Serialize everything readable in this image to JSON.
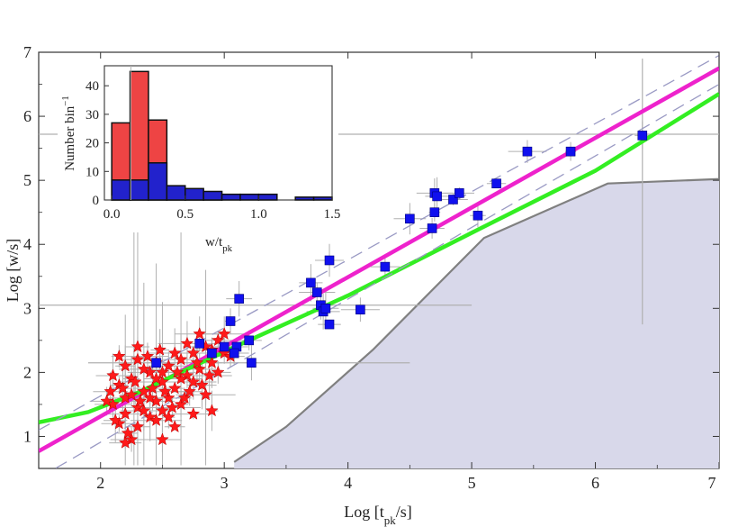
{
  "chart_data": [
    {
      "type": "scatter",
      "title": "",
      "xlabel": "Log [t_pk/s]",
      "ylabel": "Log [w/s]",
      "xlim": [
        1.5,
        7
      ],
      "ylim": [
        0.5,
        7
      ],
      "xticks": [
        "2",
        "3",
        "4",
        "5",
        "6",
        "7"
      ],
      "yticks": [
        "1",
        "2",
        "3",
        "4",
        "5",
        "6",
        "7"
      ],
      "colors": {
        "red_star": "#ff1a1a",
        "blue_square": "#1010ee",
        "magenta_fit": "#ee22cc",
        "green_fit": "#33ee22",
        "dashed": "#9a9ac4",
        "errorbar": "#b0b0b0",
        "shaded_region": "#d8d8ea",
        "boundary": "#808080"
      },
      "series": [
        {
          "name": "red stars",
          "marker": "star",
          "points": [
            [
              2.1,
              1.5
            ],
            [
              2.15,
              1.8
            ],
            [
              2.2,
              1.6
            ],
            [
              2.25,
              1.9
            ],
            [
              2.3,
              1.45
            ],
            [
              2.35,
              1.7
            ],
            [
              2.4,
              2.0
            ],
            [
              2.45,
              1.55
            ],
            [
              2.5,
              1.85
            ],
            [
              2.55,
              2.1
            ],
            [
              2.6,
              1.75
            ],
            [
              2.65,
              2.2
            ],
            [
              2.7,
              1.95
            ],
            [
              2.75,
              2.3
            ],
            [
              2.8,
              2.05
            ],
            [
              2.85,
              2.4
            ],
            [
              2.9,
              2.15
            ],
            [
              2.95,
              2.5
            ],
            [
              3.0,
              2.3
            ],
            [
              2.2,
              2.1
            ],
            [
              2.3,
              2.2
            ],
            [
              2.4,
              1.3
            ],
            [
              2.5,
              1.4
            ],
            [
              2.15,
              1.2
            ],
            [
              2.25,
              0.95
            ],
            [
              2.35,
              2.05
            ],
            [
              2.45,
              2.15
            ],
            [
              2.55,
              1.6
            ],
            [
              2.65,
              1.5
            ],
            [
              2.75,
              1.85
            ],
            [
              2.85,
              1.65
            ],
            [
              2.05,
              1.55
            ],
            [
              2.1,
              1.95
            ],
            [
              2.2,
              1.35
            ],
            [
              2.3,
              1.15
            ],
            [
              2.4,
              1.6
            ],
            [
              2.5,
              2.0
            ],
            [
              2.6,
              2.3
            ],
            [
              2.7,
              2.45
            ],
            [
              2.8,
              2.6
            ],
            [
              2.9,
              2.35
            ],
            [
              3.05,
              2.25
            ],
            [
              2.25,
              1.65
            ],
            [
              2.35,
              1.4
            ],
            [
              2.45,
              1.9
            ],
            [
              2.55,
              1.3
            ],
            [
              2.65,
              1.9
            ],
            [
              2.18,
              1.75
            ],
            [
              2.28,
              1.85
            ],
            [
              2.38,
              2.25
            ],
            [
              2.48,
              2.35
            ],
            [
              2.58,
              1.45
            ],
            [
              2.68,
              1.6
            ],
            [
              2.78,
              2.15
            ],
            [
              2.88,
              1.95
            ],
            [
              2.12,
              1.25
            ],
            [
              2.22,
              1.05
            ],
            [
              2.32,
              1.55
            ],
            [
              2.42,
              1.75
            ],
            [
              2.52,
              1.7
            ],
            [
              2.62,
              2.0
            ],
            [
              2.72,
              1.7
            ],
            [
              2.15,
              2.25
            ],
            [
              2.3,
              2.4
            ],
            [
              2.45,
              1.25
            ],
            [
              2.6,
              1.15
            ],
            [
              2.75,
              1.35
            ],
            [
              2.2,
              0.9
            ],
            [
              2.5,
              0.95
            ],
            [
              2.9,
              1.4
            ],
            [
              2.08,
              1.7
            ],
            [
              2.82,
              1.8
            ],
            [
              3.0,
              2.6
            ],
            [
              2.95,
              2.0
            ]
          ]
        },
        {
          "name": "blue squares",
          "marker": "square",
          "points": [
            [
              2.45,
              2.15
            ],
            [
              2.8,
              2.45
            ],
            [
              3.0,
              2.4
            ],
            [
              3.05,
              2.8
            ],
            [
              3.1,
              2.4
            ],
            [
              3.12,
              3.15
            ],
            [
              3.2,
              2.5
            ],
            [
              3.22,
              2.15
            ],
            [
              3.08,
              2.3
            ],
            [
              2.9,
              2.3
            ],
            [
              3.7,
              3.4
            ],
            [
              3.75,
              3.25
            ],
            [
              3.78,
              3.05
            ],
            [
              3.8,
              2.95
            ],
            [
              3.82,
              3.0
            ],
            [
              3.85,
              3.75
            ],
            [
              3.85,
              2.75
            ],
            [
              4.1,
              2.98
            ],
            [
              4.3,
              3.65
            ],
            [
              4.5,
              4.4
            ],
            [
              4.68,
              4.25
            ],
            [
              4.7,
              4.8
            ],
            [
              4.7,
              4.5
            ],
            [
              4.72,
              4.75
            ],
            [
              4.85,
              4.7
            ],
            [
              4.9,
              4.8
            ],
            [
              5.05,
              4.45
            ],
            [
              5.2,
              4.95
            ],
            [
              5.45,
              5.45
            ],
            [
              5.8,
              5.45
            ],
            [
              6.38,
              5.7
            ]
          ]
        }
      ],
      "fit_lines": [
        {
          "name": "magenta fit",
          "x": [
            1.5,
            7.0
          ],
          "y": [
            0.77,
            6.75
          ]
        },
        {
          "name": "green fit",
          "x": [
            1.5,
            1.9,
            2.3,
            2.7,
            3.2,
            4.0,
            5.0,
            6.0,
            7.0
          ],
          "y": [
            1.22,
            1.38,
            1.68,
            2.05,
            2.5,
            3.2,
            4.18,
            5.15,
            6.35
          ]
        },
        {
          "name": "dashed upper",
          "x": [
            1.5,
            7.0
          ],
          "y": [
            1.1,
            6.95
          ]
        },
        {
          "name": "dashed lower",
          "x": [
            1.5,
            7.0
          ],
          "y": [
            0.35,
            6.5
          ]
        }
      ],
      "shaded_region": {
        "x": [
          3.08,
          3.5,
          4.2,
          5.1,
          6.1,
          7.0
        ],
        "y": [
          0.6,
          1.15,
          2.35,
          4.1,
          4.95,
          5.02
        ]
      },
      "reference_lines": {
        "horizontal_y": [
          5.72,
          3.05,
          2.15
        ],
        "vertical_x": [
          6.38
        ]
      }
    },
    {
      "type": "bar",
      "title": "",
      "xlabel": "w/t_pk",
      "ylabel": "Number bin^-1",
      "xlim": [
        -0.05,
        1.5
      ],
      "ylim": [
        0,
        47
      ],
      "xticks": [
        "0.0",
        "0.5",
        "1.0",
        "1.5"
      ],
      "yticks": [
        "0",
        "10",
        "20",
        "30",
        "40"
      ],
      "bin_edges": [
        0.0,
        0.125,
        0.25,
        0.375,
        0.5,
        0.625,
        0.75,
        0.875,
        1.0,
        1.125,
        1.25,
        1.375,
        1.5
      ],
      "series": [
        {
          "name": "red histogram",
          "color": "#ee4444",
          "values": [
            27,
            45,
            28,
            2,
            1,
            1,
            0,
            0,
            0,
            0,
            0,
            0
          ]
        },
        {
          "name": "blue histogram",
          "color": "#2222cc",
          "values": [
            7,
            7,
            13,
            5,
            4,
            3,
            2,
            2,
            2,
            0,
            1,
            1
          ]
        }
      ],
      "reference_lines": {
        "vertical_x": [
          0.13
        ]
      }
    }
  ]
}
